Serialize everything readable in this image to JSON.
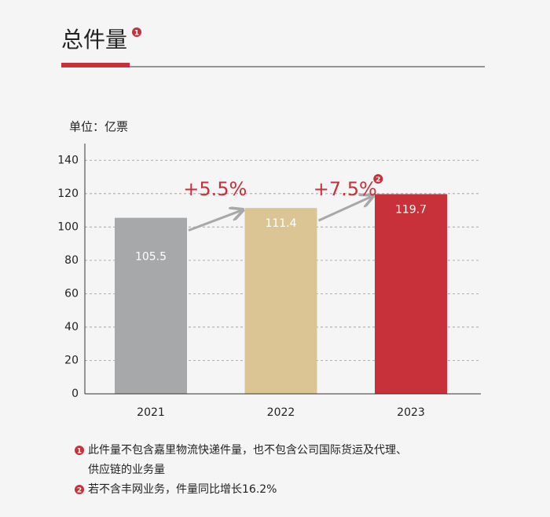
{
  "header": {
    "title": "总件量",
    "title_note": "1"
  },
  "chart_data": {
    "type": "bar",
    "unit_label": "单位：亿票",
    "categories": [
      "2021",
      "2022",
      "2023"
    ],
    "values": [
      105.5,
      111.4,
      119.7
    ],
    "colors": [
      "#a7a8aa",
      "#dcc595",
      "#c8313a"
    ],
    "ylim": [
      0,
      150
    ],
    "yticks": [
      0,
      20,
      40,
      60,
      80,
      100,
      120,
      140
    ],
    "grid": true,
    "annotations": [
      {
        "text": "+5.5%"
      },
      {
        "text": "+7.5%",
        "note": "2"
      }
    ]
  },
  "notes": [
    {
      "marker": "1",
      "lines": [
        "此件量不包含嘉里物流快递件量，也不包含公司国际货运及代理、",
        "供应链的业务量"
      ]
    },
    {
      "marker": "2",
      "lines": [
        "若不含丰网业务，件量同比增长16.2%"
      ]
    }
  ]
}
